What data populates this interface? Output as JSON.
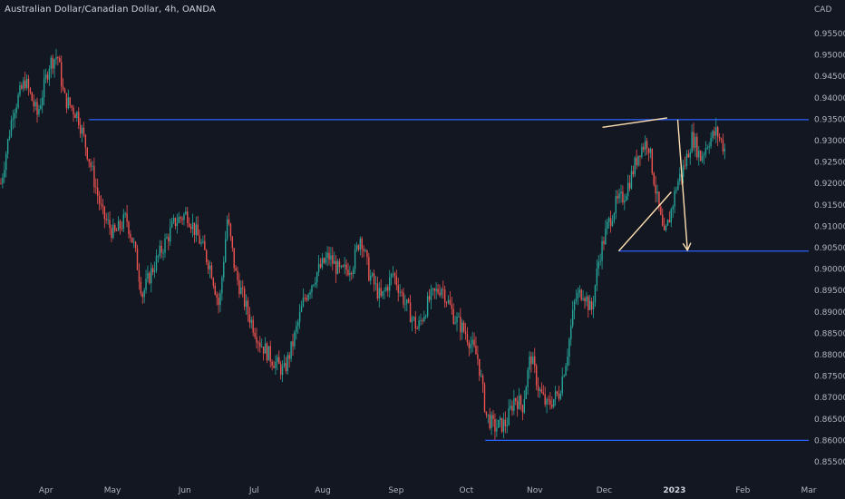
{
  "header": {
    "title": "Australian Dollar/Canadian Dollar, 4h, OANDA"
  },
  "chart_data": {
    "type": "candlestick",
    "title": "Australian Dollar/Canadian Dollar, 4h, OANDA",
    "y_unit": "CAD",
    "ylim": [
      0.852,
      0.9615
    ],
    "y_ticks": [
      "0.95500",
      "0.95000",
      "0.94500",
      "0.94000",
      "0.93500",
      "0.93000",
      "0.92500",
      "0.92000",
      "0.91500",
      "0.91000",
      "0.90500",
      "0.90000",
      "0.89500",
      "0.89000",
      "0.88500",
      "0.88000",
      "0.87500",
      "0.87000",
      "0.86500",
      "0.86000",
      "0.85500"
    ],
    "x_ticks": [
      {
        "label": "Apr",
        "pos": 0.0568,
        "bold": false
      },
      {
        "label": "May",
        "pos": 0.1391,
        "bold": false
      },
      {
        "label": "Jun",
        "pos": 0.2284,
        "bold": false
      },
      {
        "label": "Jul",
        "pos": 0.3143,
        "bold": false
      },
      {
        "label": "Aug",
        "pos": 0.3991,
        "bold": false
      },
      {
        "label": "Sep",
        "pos": 0.4897,
        "bold": false
      },
      {
        "label": "Oct",
        "pos": 0.5766,
        "bold": false
      },
      {
        "label": "Nov",
        "pos": 0.6612,
        "bold": false
      },
      {
        "label": "Dec",
        "pos": 0.7471,
        "bold": false
      },
      {
        "label": "2023",
        "pos": 0.834,
        "bold": true
      },
      {
        "label": "Feb",
        "pos": 0.9186,
        "bold": false
      },
      {
        "label": "Mar",
        "pos": 1.0,
        "bold": false
      }
    ],
    "price_path": [
      [
        0.0,
        0.92
      ],
      [
        0.015,
        0.937
      ],
      [
        0.03,
        0.944
      ],
      [
        0.045,
        0.936
      ],
      [
        0.06,
        0.948
      ],
      [
        0.07,
        0.95
      ],
      [
        0.078,
        0.94
      ],
      [
        0.095,
        0.936
      ],
      [
        0.11,
        0.925
      ],
      [
        0.125,
        0.913
      ],
      [
        0.14,
        0.908
      ],
      [
        0.155,
        0.912
      ],
      [
        0.165,
        0.905
      ],
      [
        0.175,
        0.894
      ],
      [
        0.185,
        0.899
      ],
      [
        0.2,
        0.905
      ],
      [
        0.215,
        0.911
      ],
      [
        0.23,
        0.913
      ],
      [
        0.245,
        0.907
      ],
      [
        0.26,
        0.9
      ],
      [
        0.27,
        0.891
      ],
      [
        0.28,
        0.912
      ],
      [
        0.29,
        0.899
      ],
      [
        0.305,
        0.89
      ],
      [
        0.32,
        0.883
      ],
      [
        0.335,
        0.879
      ],
      [
        0.35,
        0.876
      ],
      [
        0.36,
        0.882
      ],
      [
        0.375,
        0.893
      ],
      [
        0.39,
        0.899
      ],
      [
        0.405,
        0.903
      ],
      [
        0.42,
        0.899
      ],
      [
        0.435,
        0.901
      ],
      [
        0.445,
        0.908
      ],
      [
        0.455,
        0.899
      ],
      [
        0.47,
        0.893
      ],
      [
        0.485,
        0.899
      ],
      [
        0.5,
        0.892
      ],
      [
        0.515,
        0.886
      ],
      [
        0.53,
        0.893
      ],
      [
        0.545,
        0.896
      ],
      [
        0.56,
        0.889
      ],
      [
        0.575,
        0.885
      ],
      [
        0.59,
        0.879
      ],
      [
        0.6,
        0.866
      ],
      [
        0.61,
        0.863
      ],
      [
        0.625,
        0.864
      ],
      [
        0.635,
        0.87
      ],
      [
        0.645,
        0.868
      ],
      [
        0.655,
        0.88
      ],
      [
        0.665,
        0.872
      ],
      [
        0.675,
        0.868
      ],
      [
        0.69,
        0.871
      ],
      [
        0.7,
        0.88
      ],
      [
        0.71,
        0.893
      ],
      [
        0.72,
        0.895
      ],
      [
        0.73,
        0.89
      ],
      [
        0.74,
        0.903
      ],
      [
        0.75,
        0.91
      ],
      [
        0.76,
        0.915
      ],
      [
        0.77,
        0.917
      ],
      [
        0.78,
        0.922
      ],
      [
        0.79,
        0.928
      ],
      [
        0.8,
        0.93
      ],
      [
        0.81,
        0.918
      ],
      [
        0.82,
        0.907
      ],
      [
        0.828,
        0.913
      ],
      [
        0.836,
        0.92
      ],
      [
        0.845,
        0.924
      ],
      [
        0.855,
        0.931
      ],
      [
        0.865,
        0.926
      ],
      [
        0.875,
        0.93
      ],
      [
        0.885,
        0.932
      ],
      [
        0.895,
        0.928
      ]
    ],
    "x_range_end": 0.895,
    "horizontal_levels": [
      {
        "price": 0.9349,
        "x_start": 0.11,
        "x_end": 1.0
      },
      {
        "price": 0.9042,
        "x_start": 0.765,
        "x_end": 1.0
      },
      {
        "price": 0.86,
        "x_start": 0.6,
        "x_end": 1.0
      }
    ],
    "wedge_upper": [
      [
        0.745,
        0.9331
      ],
      [
        0.825,
        0.9353
      ]
    ],
    "wedge_lower": [
      [
        0.765,
        0.9042
      ],
      [
        0.83,
        0.918
      ]
    ],
    "projection_arrow": [
      [
        0.838,
        0.9349
      ],
      [
        0.85,
        0.9044
      ]
    ],
    "colors": {
      "up": "#26a69a",
      "down": "#ef5350",
      "level_line": "#2962ff",
      "wedge": "#ffe0b2",
      "arrow": "#ffe0b2",
      "axis_text": "#b2b5be"
    }
  }
}
